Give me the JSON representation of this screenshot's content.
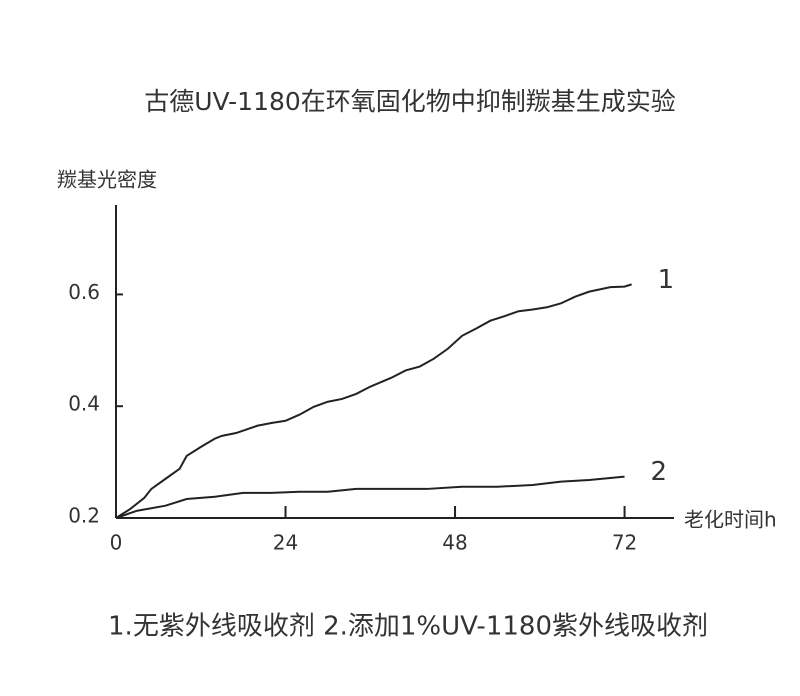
{
  "chart_data": {
    "type": "line",
    "title": "古德UV-1180在环氧固化物中抑制羰基生成实验",
    "ylabel": "羰基光密度",
    "xlabel": "老化时间h",
    "caption": "1.无紫外线吸收剂  2.添加1%UV-1180紫外线吸收剂",
    "xlim": [
      0,
      79
    ],
    "ylim": [
      0.2,
      0.76
    ],
    "xticks": [
      0,
      24,
      48,
      72
    ],
    "yticks": [
      0.2,
      0.4,
      0.6
    ],
    "series": [
      {
        "name": "1",
        "color": "#222222",
        "x": [
          0,
          2,
          4,
          5,
          7,
          9,
          10,
          12,
          14,
          15,
          17,
          20,
          22,
          24,
          26,
          28,
          30,
          32,
          34,
          36,
          39,
          41,
          43,
          45,
          47,
          49,
          51,
          53,
          55,
          57,
          59,
          61,
          63,
          65,
          67,
          70,
          72,
          73
        ],
        "values": [
          0.2,
          0.216,
          0.236,
          0.252,
          0.27,
          0.288,
          0.311,
          0.327,
          0.342,
          0.347,
          0.352,
          0.365,
          0.37,
          0.374,
          0.385,
          0.399,
          0.408,
          0.413,
          0.422,
          0.435,
          0.451,
          0.464,
          0.471,
          0.485,
          0.503,
          0.526,
          0.539,
          0.553,
          0.561,
          0.57,
          0.573,
          0.577,
          0.584,
          0.596,
          0.605,
          0.613,
          0.614,
          0.618
        ]
      },
      {
        "name": "2",
        "color": "#222222",
        "x": [
          0,
          3,
          7,
          10,
          14,
          18,
          22,
          26,
          30,
          34,
          40,
          44,
          49,
          54,
          59,
          63,
          67,
          72
        ],
        "values": [
          0.2,
          0.213,
          0.222,
          0.234,
          0.238,
          0.245,
          0.245,
          0.247,
          0.247,
          0.252,
          0.252,
          0.252,
          0.256,
          0.256,
          0.259,
          0.265,
          0.268,
          0.274
        ]
      }
    ]
  }
}
